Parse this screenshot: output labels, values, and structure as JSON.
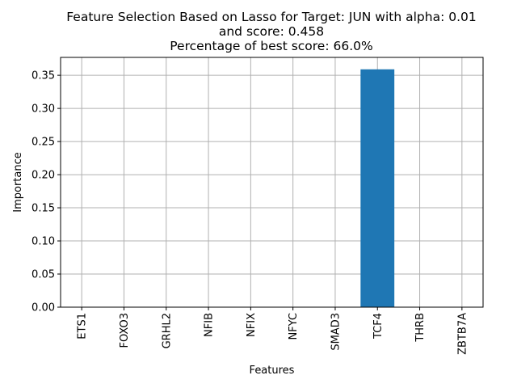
{
  "chart_data": {
    "type": "bar",
    "title": {
      "line1": "Feature Selection Based on Lasso for Target: JUN with alpha: 0.01",
      "line2": "and score: 0.458",
      "line3": "Percentage of best score: 66.0%"
    },
    "xlabel": "Features",
    "ylabel": "Importance",
    "categories": [
      "ETS1",
      "FOXO3",
      "GRHL2",
      "NFIB",
      "NFIX",
      "NFYC",
      "SMAD3",
      "TCF4",
      "THRB",
      "ZBTB7A"
    ],
    "values": [
      0,
      0,
      0,
      0,
      0,
      0,
      0,
      0.359,
      0,
      0
    ],
    "ylim": [
      0,
      0.377
    ],
    "yticks": [
      0.0,
      0.05,
      0.1,
      0.15,
      0.2,
      0.25,
      0.3,
      0.35
    ],
    "ytick_labels": [
      "0.00",
      "0.05",
      "0.10",
      "0.15",
      "0.20",
      "0.25",
      "0.30",
      "0.35"
    ],
    "grid": true,
    "bar_color": "#1f77b4",
    "grid_color": "#b0b0b0"
  }
}
